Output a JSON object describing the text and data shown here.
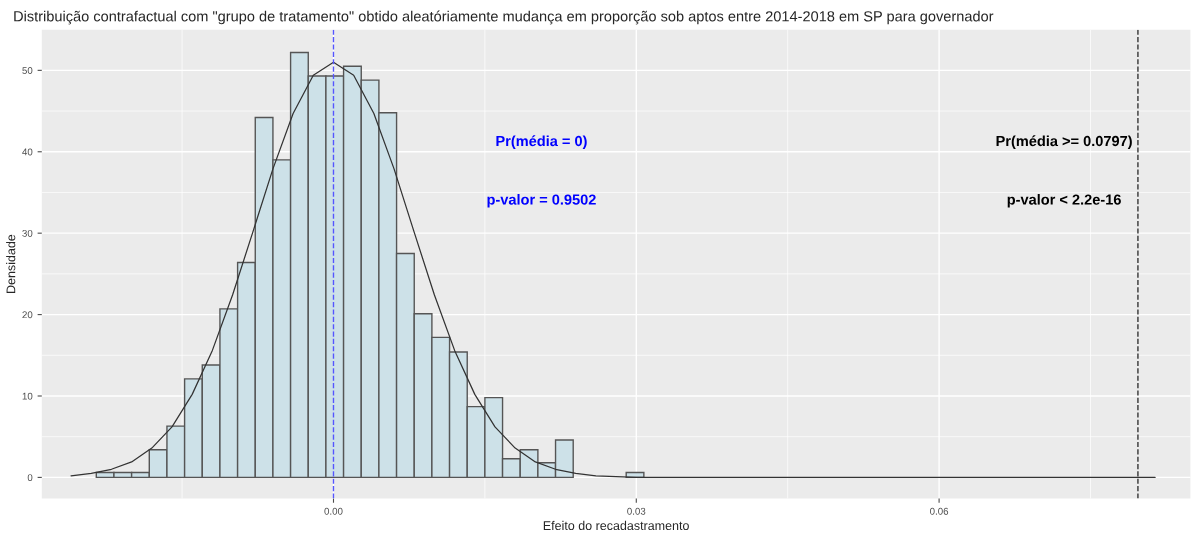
{
  "chart_data": {
    "type": "histogram",
    "title": "Distribuição contrafactual com \"grupo de tratamento\" obtido aleatóriamente mudança em proporção sob aptos entre 2014-2018 em SP para governador",
    "xlabel": "Efeito do recadastramento",
    "ylabel": "Densidade",
    "bins": [
      -0.0235,
      -0.02175,
      -0.02,
      -0.01825,
      -0.0165,
      -0.01475,
      -0.013,
      -0.01125,
      -0.0095,
      -0.00775,
      -0.006,
      -0.00425,
      -0.0025,
      -0.00075,
      0.001,
      0.00275,
      0.0045,
      0.00625,
      0.008,
      0.00975,
      0.0115,
      0.01325,
      0.015,
      0.01675,
      0.0185,
      0.02025,
      0.022,
      0.02375,
      0.0255,
      0.02725,
      0.029,
      0.03075
    ],
    "values": [
      0.6,
      0.6,
      0.6,
      3.4,
      6.3,
      12.1,
      13.8,
      20.7,
      26.4,
      44.2,
      39.0,
      52.2,
      49.3,
      49.3,
      50.5,
      48.8,
      44.8,
      27.5,
      20.1,
      17.2,
      15.4,
      8.7,
      9.8,
      2.3,
      3.4,
      1.8,
      4.6,
      0,
      0,
      0,
      0.6
    ],
    "color": "#cde1e8",
    "series": [
      {
        "type": "line",
        "color": "#333333",
        "x": [
          -0.026,
          -0.024,
          -0.022,
          -0.02,
          -0.018,
          -0.016,
          -0.014,
          -0.012,
          -0.01,
          -0.008,
          -0.006,
          -0.004,
          -0.002,
          0,
          0.002,
          0.004,
          0.006,
          0.008,
          0.01,
          0.012,
          0.014,
          0.016,
          0.018,
          0.02,
          0.022,
          0.024,
          0.026,
          0.028,
          0.03,
          0.04,
          0.06,
          0.0814
        ],
        "values": [
          0.2,
          0.5,
          1,
          1.9,
          3.6,
          6.2,
          10.2,
          15.6,
          22.4,
          30.1,
          37.9,
          44.7,
          49.4,
          51,
          49.4,
          44.7,
          37.9,
          30.1,
          22.4,
          15.6,
          10.2,
          6.2,
          3.6,
          1.9,
          1,
          0.5,
          0.2,
          0.1,
          0,
          0,
          0,
          0
        ]
      }
    ],
    "ref_lines": [
      {
        "axis": "x",
        "value": 0,
        "color": "#5555ff",
        "line_style": "dashed"
      },
      {
        "axis": "x",
        "value": 0.0797,
        "color": "#333333",
        "line_style": "dashed"
      }
    ],
    "annotations": [
      "Pr(média = 0)",
      "p-valor = 0.9502",
      "Pr(média >= 0.0797)",
      "p-valor < 2.2e-16"
    ],
    "xlim": [
      -0.0289,
      0.0849
    ],
    "ylim": [
      -2.6,
      55
    ],
    "xticks": [
      {
        "value": 0,
        "label": "0.00"
      },
      {
        "value": 0.03,
        "label": "0.03"
      },
      {
        "value": 0.06,
        "label": "0.06"
      }
    ],
    "yticks": [
      0,
      10,
      20,
      30,
      40,
      50
    ],
    "grid": true
  }
}
